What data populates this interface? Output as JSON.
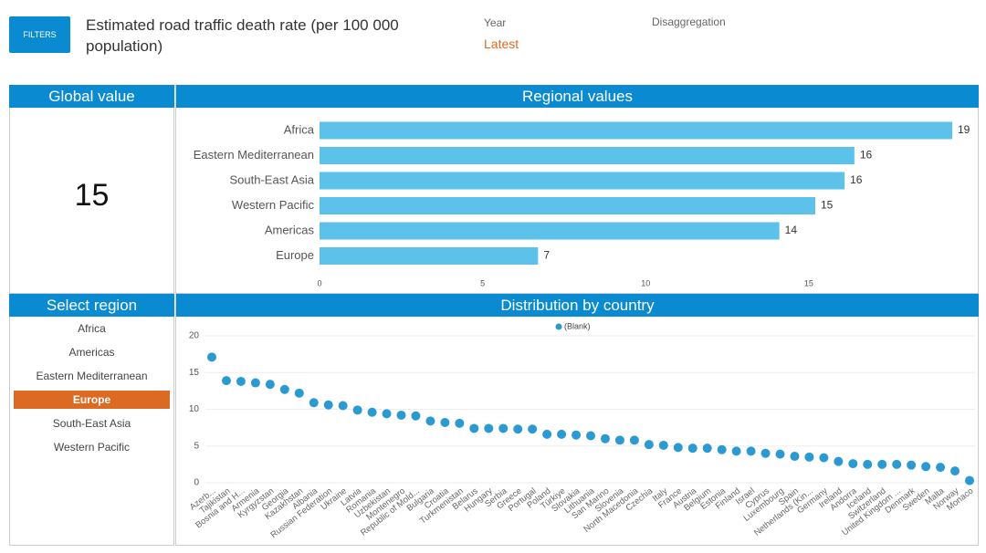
{
  "filters_button": "FILTERS",
  "title": "Estimated road traffic death rate (per 100 000 population)",
  "year_label": "Year",
  "year_value": "Latest",
  "disaggregation_label": "Disaggregation",
  "global_header": "Global value",
  "global_value": 15,
  "regional_header": "Regional values",
  "select_header": "Select region",
  "regions": [
    {
      "label": "Africa"
    },
    {
      "label": "Americas"
    },
    {
      "label": "Eastern Mediterranean"
    },
    {
      "label": "Europe",
      "selected": true
    },
    {
      "label": "South-East Asia"
    },
    {
      "label": "Western Pacific"
    }
  ],
  "distribution_header": "Distribution by country",
  "chart_data": [
    {
      "type": "bar",
      "orientation": "horizontal",
      "categories": [
        "Africa",
        "Eastern Mediterranean",
        "South-East Asia",
        "Western Pacific",
        "Americas",
        "Europe"
      ],
      "values": [
        19.4,
        16.4,
        16.1,
        15.2,
        14.1,
        6.7
      ],
      "value_labels": [
        "19",
        "16",
        "16",
        "15",
        "14",
        "7"
      ],
      "color": "#5cc2ea",
      "xlim": [
        0,
        19.4
      ],
      "xticks": [
        0,
        5,
        10,
        15
      ]
    },
    {
      "type": "scatter",
      "categories": [
        "Azerb...",
        "Tajikistan",
        "Bosnia and H...",
        "Armenia",
        "Kyrgyzstan",
        "Georgia",
        "Kazakhstan",
        "Albania",
        "Russian Federation",
        "Ukraine",
        "Latvia",
        "Romania",
        "Uzbekistan",
        "Montenegro",
        "Republic of Mold...",
        "Bulgaria",
        "Croatia",
        "Turkmenistan",
        "Belarus",
        "Hungary",
        "Serbia",
        "Greece",
        "Portugal",
        "Poland",
        "Türkiye",
        "Slovakia",
        "Lithuania",
        "San Marino",
        "Slovenia",
        "North Macedonia",
        "Czechia",
        "Italy",
        "France",
        "Austria",
        "Belgium",
        "Estonia",
        "Finland",
        "Israel",
        "Cyprus",
        "Luxembourg",
        "Spain",
        "Netherlands (Kin...",
        "Germany",
        "Ireland",
        "Andorra",
        "Iceland",
        "Switzerland",
        "United Kingdom ...",
        "Denmark",
        "Sweden",
        "Malta",
        "Norway",
        "Monaco"
      ],
      "series": [
        {
          "name": "(Blank)",
          "color": "#2b9ad2",
          "values": [
            17.1,
            13.9,
            13.8,
            13.6,
            13.4,
            12.7,
            12.2,
            10.9,
            10.6,
            10.5,
            9.9,
            9.6,
            9.4,
            9.2,
            9.1,
            8.4,
            8.2,
            8.1,
            7.4,
            7.4,
            7.4,
            7.3,
            7.3,
            6.6,
            6.6,
            6.5,
            6.4,
            6.0,
            5.8,
            5.8,
            5.2,
            5.1,
            4.8,
            4.7,
            4.7,
            4.5,
            4.3,
            4.3,
            4.0,
            3.9,
            3.6,
            3.5,
            3.4,
            2.9,
            2.6,
            2.5,
            2.5,
            2.5,
            2.4,
            2.2,
            2.1,
            1.6,
            0.3
          ]
        }
      ],
      "ylim": [
        0,
        21
      ],
      "yticks": [
        0,
        5,
        10,
        15,
        20
      ],
      "grid": true,
      "legend": "top"
    }
  ]
}
